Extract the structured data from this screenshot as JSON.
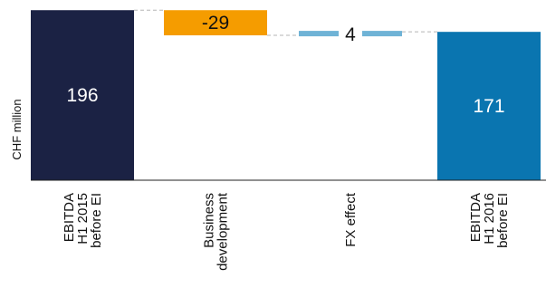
{
  "chart_data": {
    "type": "bar",
    "ylabel": "CHF million",
    "categories": [
      [
        "EBITDA",
        "H1 2015",
        "before EI"
      ],
      [
        "Business",
        "development"
      ],
      [
        "FX effect"
      ],
      [
        "EBITDA",
        "H1 2016",
        "before EI"
      ]
    ],
    "steps": [
      {
        "kind": "total",
        "value": 196,
        "label": "196",
        "color": "#1b2244"
      },
      {
        "kind": "delta",
        "value": -29,
        "label": "-29",
        "color": "#f59c00"
      },
      {
        "kind": "delta",
        "value": 4,
        "label": "4",
        "color": "#6fb3d6"
      },
      {
        "kind": "total",
        "value": 171,
        "label": "171",
        "color": "#0a75b0"
      }
    ],
    "connector_color": "#b5b5b5",
    "axis_color": "#222222"
  }
}
